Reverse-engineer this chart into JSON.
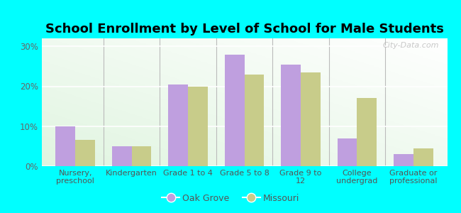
{
  "title": "School Enrollment by Level of School for Male Students",
  "categories": [
    "Nursery,\npreschool",
    "Kindergarten",
    "Grade 1 to 4",
    "Grade 5 to 8",
    "Grade 9 to\n12",
    "College\nundergrad",
    "Graduate or\nprofessional"
  ],
  "oak_grove": [
    10,
    5,
    20.5,
    28,
    25.5,
    7,
    3
  ],
  "missouri": [
    6.5,
    5,
    20,
    23,
    23.5,
    17,
    4.5
  ],
  "oak_grove_color": "#bf9fdf",
  "missouri_color": "#c8cc8a",
  "background_color": "#00ffff",
  "plot_bg_color": "#e8f5e0",
  "title_fontsize": 13,
  "tick_label_fontsize": 8,
  "legend_fontsize": 9,
  "ylim": [
    0,
    32
  ],
  "yticks": [
    0,
    10,
    20,
    30
  ],
  "ytick_labels": [
    "0%",
    "10%",
    "20%",
    "30%"
  ],
  "bar_width": 0.35,
  "watermark": "City-Data.com"
}
